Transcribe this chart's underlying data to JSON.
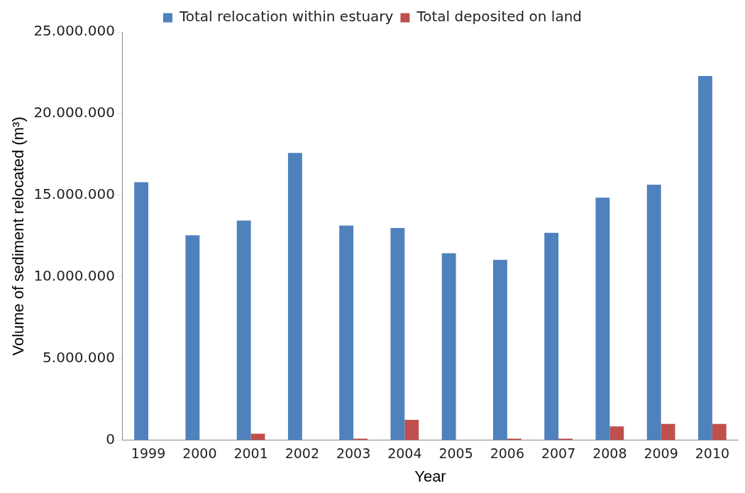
{
  "chart_data": {
    "type": "bar",
    "xlabel": "Year",
    "ylabel": "Volume of sediment relocated (m³)",
    "categories": [
      "1999",
      "2000",
      "2001",
      "2002",
      "2003",
      "2004",
      "2005",
      "2006",
      "2007",
      "2008",
      "2009",
      "2010"
    ],
    "series": [
      {
        "name": "Total relocation within estuary",
        "color": "#4f81bd",
        "values": [
          15800000,
          12550000,
          13450000,
          17600000,
          13150000,
          13000000,
          11450000,
          11050000,
          12700000,
          14850000,
          15650000,
          22300000
        ]
      },
      {
        "name": "Total deposited on land",
        "color": "#c0504d",
        "values": [
          0,
          0,
          400000,
          0,
          100000,
          1250000,
          0,
          100000,
          100000,
          850000,
          1000000,
          1000000
        ]
      }
    ],
    "ylim": [
      0,
      25000000
    ],
    "yticks": [
      {
        "value": 0,
        "label": "0"
      },
      {
        "value": 5000000,
        "label": "5.000.000"
      },
      {
        "value": 10000000,
        "label": "10.000.000"
      },
      {
        "value": 15000000,
        "label": "15.000.000"
      },
      {
        "value": 20000000,
        "label": "20.000.000"
      },
      {
        "value": 25000000,
        "label": "25.000.000"
      }
    ],
    "grid": false,
    "legend": "top"
  }
}
